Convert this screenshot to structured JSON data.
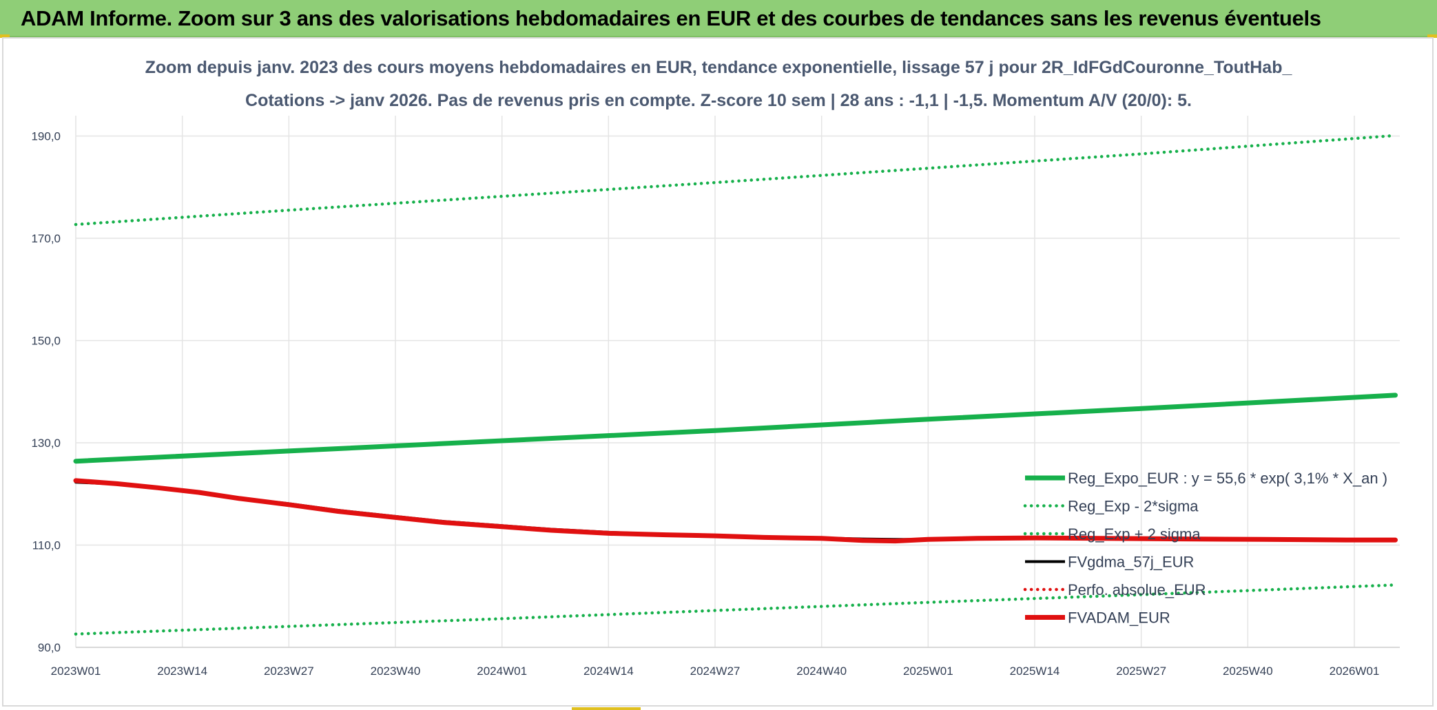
{
  "banner": {
    "title": "ADAM Informe. Zoom sur 3 ans des valorisations hebdomadaires en EUR et des courbes de tendances sans les revenus éventuels"
  },
  "colors": {
    "banner_bg": "#8fce77",
    "reg_green": "#16b04b",
    "dotted_green": "#16b04b",
    "black": "#000000",
    "red": "#e01010",
    "grid": "#e4e4e4",
    "text": "#333f55"
  },
  "chart_data": {
    "type": "line",
    "title_lines": [
      "Zoom depuis janv. 2023 des cours moyens hebdomadaires en EUR, tendance exponentielle, lissage 57 j pour 2R_IdFGdCouronne_ToutHab_",
      "Cotations -> janv 2026. Pas de revenus pris en compte. Z-score 10 sem | 28 ans : -1,1 | -1,5. Momentum A/V (20/0): 5."
    ],
    "xlabel": "",
    "ylabel": "",
    "ylim": [
      88,
      195
    ],
    "yticks": [
      90,
      110,
      130,
      150,
      170,
      190
    ],
    "ytick_labels": [
      "90,0",
      "110,0",
      "130,0",
      "150,0",
      "170,0",
      "190,0"
    ],
    "x_range_weeks": [
      0,
      161
    ],
    "xticks": [
      0,
      13,
      26,
      39,
      52,
      65,
      78,
      91,
      104,
      117,
      130,
      143,
      156
    ],
    "xtick_labels": [
      "2023W01",
      "2023W14",
      "2023W27",
      "2023W40",
      "2024W01",
      "2024W14",
      "2024W27",
      "2024W40",
      "2025W01",
      "2025W14",
      "2025W27",
      "2025W40",
      "2026W01"
    ],
    "grid": true,
    "legend_position": "right",
    "series": [
      {
        "name": "Reg_Expo_EUR : y = 55,6 * exp( 3,1% *  X_an )",
        "style": "solid-thick",
        "color": "#16b04b",
        "x": [
          0,
          26,
          52,
          78,
          104,
          130,
          161
        ],
        "y": [
          126.4,
          128.4,
          130.4,
          132.4,
          134.6,
          136.7,
          139.3
        ]
      },
      {
        "name": "Reg_Exp - 2*sigma",
        "style": "dotted",
        "color": "#16b04b",
        "x": [
          0,
          26,
          52,
          78,
          104,
          130,
          161
        ],
        "y": [
          92.6,
          94.1,
          95.6,
          97.2,
          98.8,
          100.3,
          102.2
        ]
      },
      {
        "name": "Reg_Exp + 2 sigma",
        "style": "dotted",
        "color": "#16b04b",
        "x": [
          0,
          26,
          52,
          78,
          104,
          130,
          161
        ],
        "y": [
          172.7,
          175.5,
          178.2,
          180.9,
          183.7,
          186.5,
          190.1
        ]
      },
      {
        "name": "FVgdma_57j_EUR",
        "style": "solid-medium",
        "color": "#000000",
        "x": [
          0,
          5,
          10,
          15,
          20,
          26,
          32,
          39,
          45,
          52,
          58,
          65,
          72,
          78,
          84,
          91,
          96,
          100,
          104,
          110,
          117,
          125,
          135,
          145,
          155,
          161
        ],
        "y": [
          122.3,
          121.9,
          121.1,
          120.3,
          119.2,
          118.1,
          116.8,
          115.6,
          114.6,
          113.8,
          113.1,
          112.5,
          112.1,
          111.9,
          111.6,
          111.4,
          111.2,
          111.1,
          111.1,
          111.2,
          111.3,
          111.3,
          111.2,
          111.1,
          111.1,
          111.1
        ]
      },
      {
        "name": "Perfo. absolue_EUR",
        "style": "dotted",
        "color": "#e01010",
        "x": [],
        "y": []
      },
      {
        "name": "FVADAM_EUR",
        "style": "solid-thick",
        "color": "#e01010",
        "x": [
          0,
          5,
          10,
          15,
          20,
          26,
          32,
          39,
          45,
          52,
          58,
          65,
          72,
          78,
          84,
          91,
          96,
          100,
          104,
          110,
          117,
          125,
          135,
          145,
          155,
          161
        ],
        "y": [
          122.6,
          122.0,
          121.2,
          120.3,
          119.1,
          117.9,
          116.6,
          115.4,
          114.4,
          113.6,
          112.9,
          112.3,
          112.0,
          111.8,
          111.5,
          111.3,
          110.9,
          110.8,
          111.1,
          111.3,
          111.4,
          111.3,
          111.2,
          111.1,
          111.0,
          111.0
        ]
      }
    ]
  }
}
